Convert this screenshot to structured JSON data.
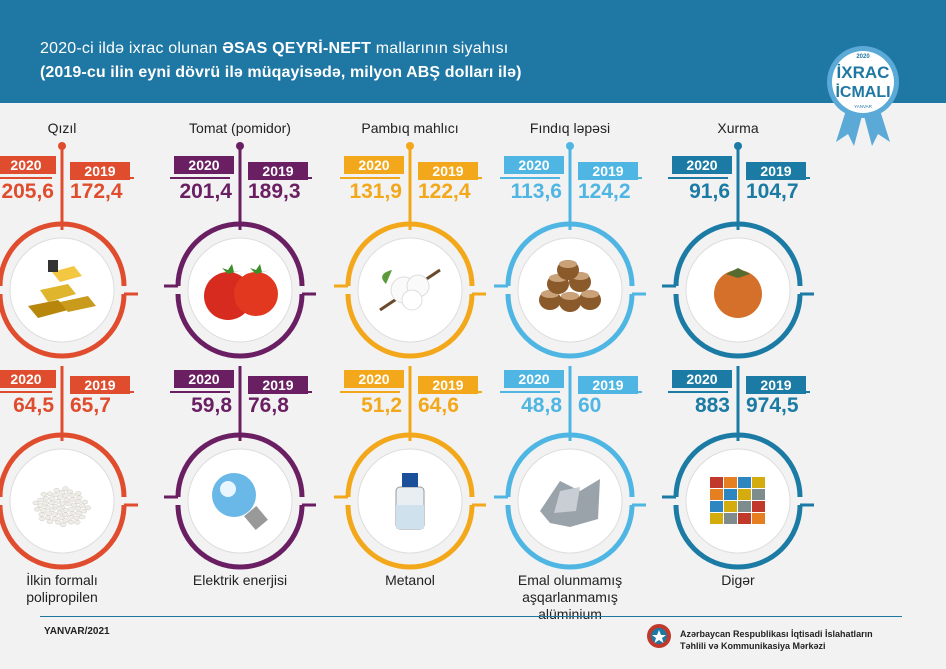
{
  "header": {
    "title_prefix": "2020-ci ildə ixrac olunan ",
    "title_bold": "ƏSAS QEYRİ-NEFT",
    "title_suffix": " mallarının siyahısı",
    "subtitle": "(2019-cu ilin eyni dövrü ilə müqayisədə, milyon ABŞ dolları ilə)"
  },
  "badge": {
    "top": "2020",
    "line1": "İXRAC",
    "line2": "İCMALI",
    "bottom": "YANVAR"
  },
  "year_a": "2020",
  "year_b": "2019",
  "colors": {
    "red": "#e04d2e",
    "purple": "#6a1f63",
    "yellow": "#f3a81b",
    "light_blue": "#4fb6e3",
    "blue": "#1b7ba5"
  },
  "products": [
    {
      "name": "Qızıl",
      "v2020": "205,6",
      "v2019": "172,4",
      "color": "#e04d2e",
      "icon": "gold-bars-icon"
    },
    {
      "name": "Tomat (pomidor)",
      "v2020": "201,4",
      "v2019": "189,3",
      "color": "#6a1f63",
      "icon": "tomato-icon"
    },
    {
      "name": "Pambıq mahlıcı",
      "v2020": "131,9",
      "v2019": "122,4",
      "color": "#f3a81b",
      "icon": "cotton-icon"
    },
    {
      "name": "Fındıq ləpəsi",
      "v2020": "113,6",
      "v2019": "124,2",
      "color": "#4fb6e3",
      "icon": "hazelnut-icon"
    },
    {
      "name": "Xurma",
      "v2020": "91,6",
      "v2019": "104,7",
      "color": "#1b7ba5",
      "icon": "persimmon-icon"
    },
    {
      "name": "İlkin formalı polipropilen",
      "v2020": "64,5",
      "v2019": "65,7",
      "color": "#e04d2e",
      "icon": "pellets-icon"
    },
    {
      "name": "Elektrik enerjisi",
      "v2020": "59,8",
      "v2019": "76,8",
      "color": "#6a1f63",
      "icon": "light-bulb-icon"
    },
    {
      "name": "Metanol",
      "v2020": "51,2",
      "v2019": "64,6",
      "color": "#f3a81b",
      "icon": "bottle-icon"
    },
    {
      "name": "Emal olunmamış aşqarlanmamış alüminium",
      "v2020": "48,8",
      "v2019": "60",
      "color": "#4fb6e3",
      "icon": "aluminium-icon"
    },
    {
      "name": "Digər",
      "v2020": "883",
      "v2019": "974,5",
      "color": "#1b7ba5",
      "icon": "containers-icon"
    }
  ],
  "footer": {
    "date": "YANVAR/2021",
    "org_line1": "Azərbaycan Respublikası İqtisadi İslahatların",
    "org_line2": "Təhlili və Kommunikasiya Mərkəzi"
  }
}
